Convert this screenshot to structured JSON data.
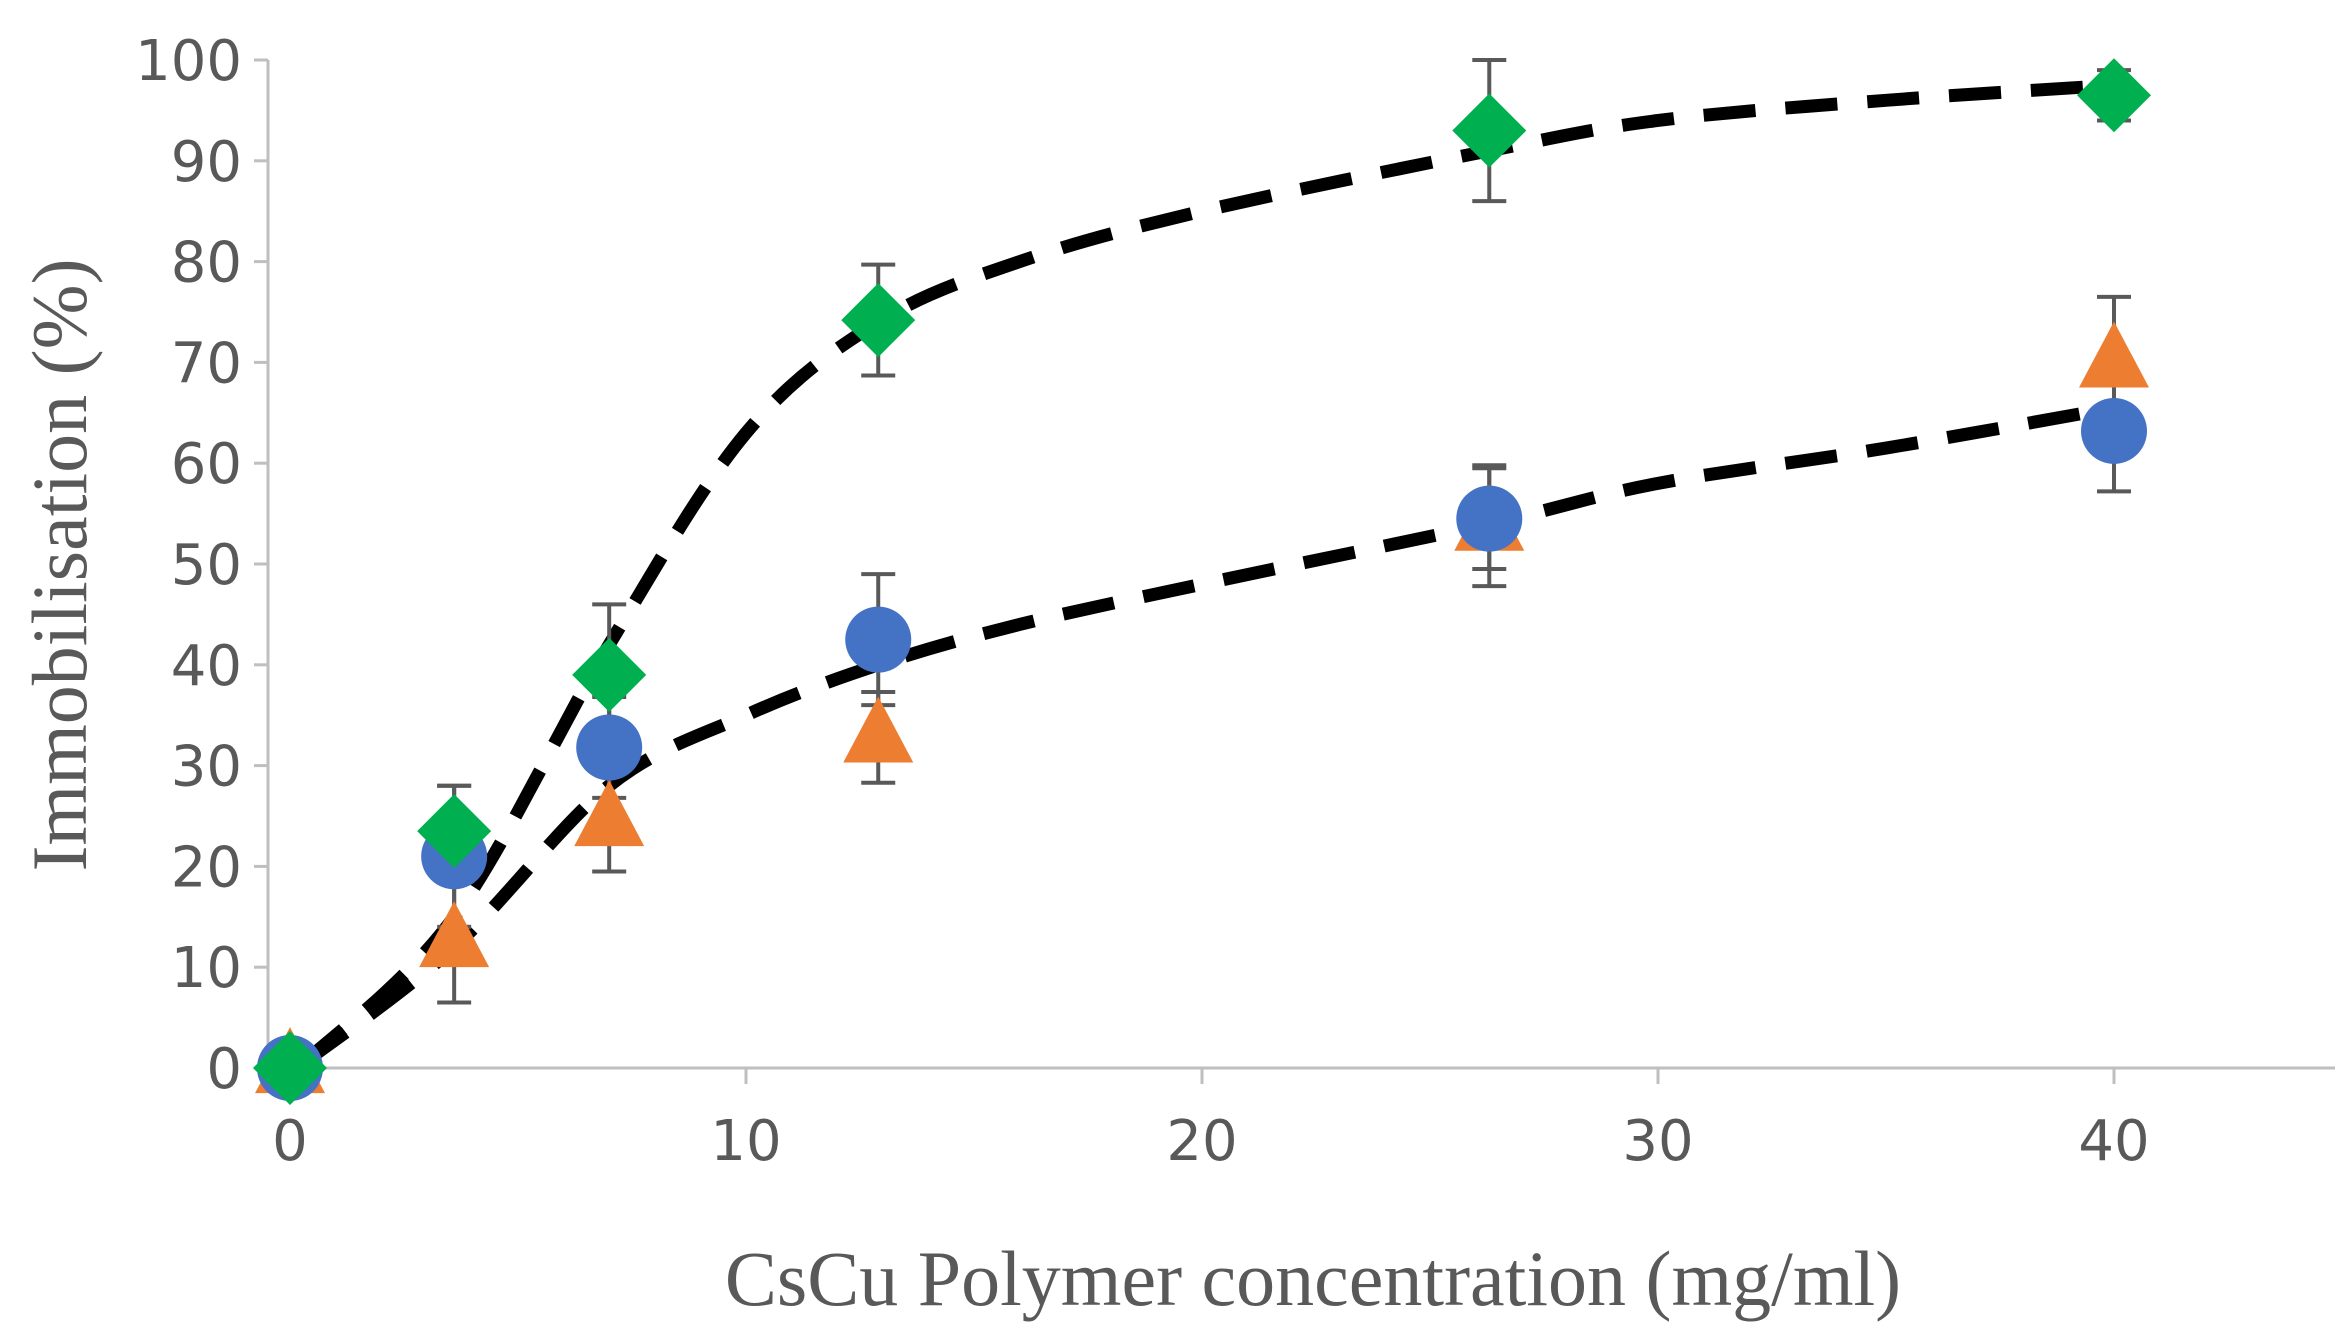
{
  "chart_data": {
    "type": "scatter",
    "title": "",
    "xlabel": "CsCu Polymer concentration (mg/ml)",
    "ylabel": "Immobilisation (%)",
    "xlim": [
      0,
      45
    ],
    "ylim": [
      0,
      100
    ],
    "xticks": [
      0,
      10,
      20,
      30,
      40
    ],
    "yticks": [
      0,
      10,
      20,
      30,
      40,
      50,
      60,
      70,
      80,
      90,
      100
    ],
    "grid": false,
    "legend": "none",
    "colors": {
      "circle": "#4472C4",
      "triangle": "#ED7D31",
      "diamond": "#00B050",
      "trend": "#000000",
      "errorbar": "#595959",
      "axis": "#BFBFBF"
    },
    "series": [
      {
        "name": "circle",
        "marker": "circle",
        "x": [
          0,
          3.6,
          7,
          12.9,
          26.3,
          40
        ],
        "y": [
          0,
          21,
          31.8,
          42.5,
          54.5,
          63.2
        ],
        "err": [
          0,
          7,
          5,
          6.5,
          5,
          6
        ]
      },
      {
        "name": "triangle",
        "marker": "triangle",
        "x": [
          0,
          3.6,
          7,
          12.9,
          26.3,
          40
        ],
        "y": [
          0,
          12.5,
          24.5,
          32.8,
          53.8,
          70
        ],
        "err": [
          0,
          6,
          5,
          4.5,
          6,
          6.5
        ]
      },
      {
        "name": "diamond",
        "marker": "diamond",
        "x": [
          0,
          3.6,
          7,
          12.9,
          26.3,
          40
        ],
        "y": [
          0,
          23.5,
          39,
          74.2,
          93,
          96.5
        ],
        "err": [
          0,
          4.5,
          7,
          5.5,
          7,
          2.5
        ]
      }
    ],
    "trendlines": [
      {
        "name": "upper-trend",
        "style": "dashed",
        "x": [
          0.3,
          3.6,
          7,
          10,
          12.9,
          16,
          20,
          26.3,
          30,
          35,
          40
        ],
        "y": [
          0.5,
          15,
          42,
          63,
          74,
          80,
          85,
          91,
          94,
          96,
          97.5
        ]
      },
      {
        "name": "lower-trend",
        "style": "dashed",
        "x": [
          0.3,
          3.6,
          7,
          10,
          12.9,
          16,
          20,
          26.3,
          30,
          35,
          40
        ],
        "y": [
          0.5,
          12,
          28,
          35,
          40,
          44,
          48,
          54,
          58,
          61.5,
          65.5
        ]
      }
    ]
  }
}
